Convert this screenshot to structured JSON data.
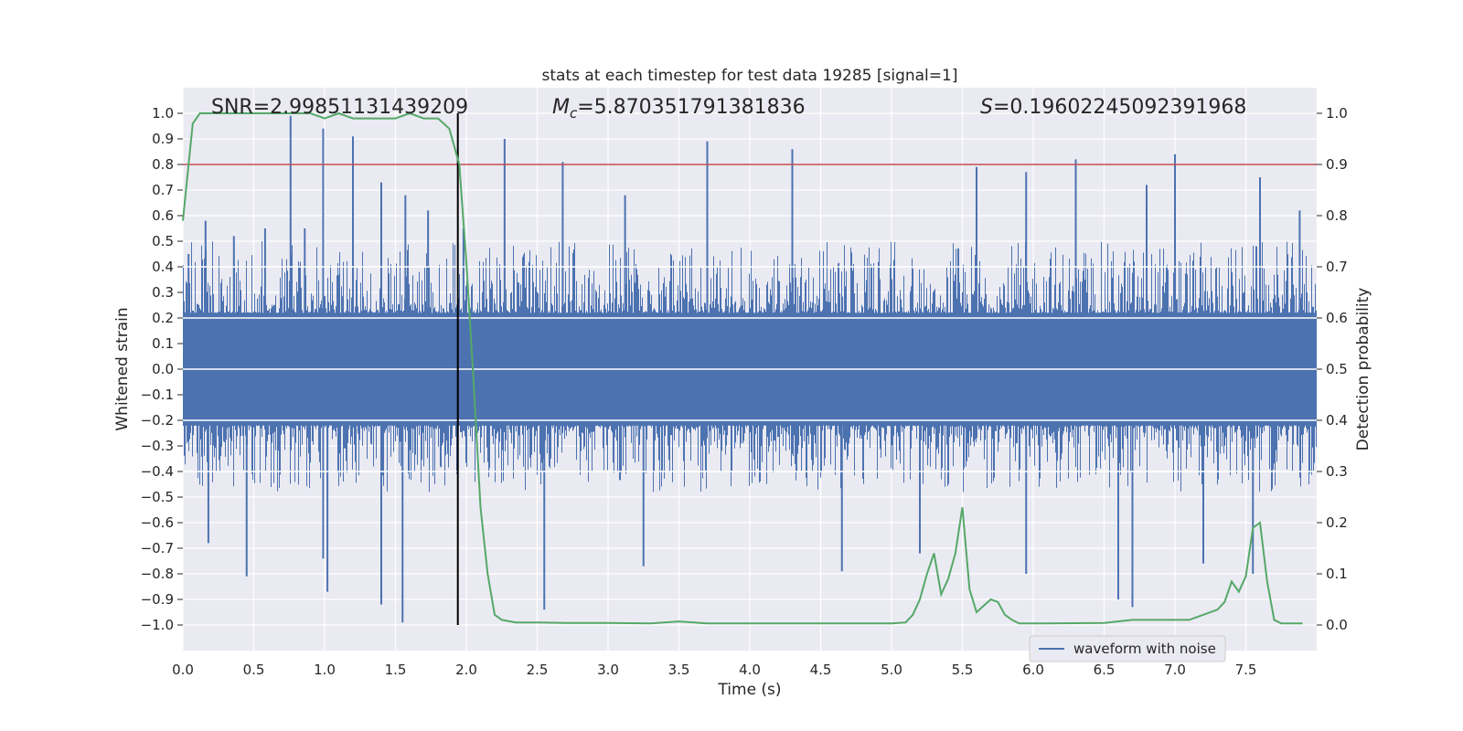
{
  "chart_data": {
    "type": "line",
    "title": "stats at each timestep for test data 19285 [signal=1]",
    "xlabel": "Time (s)",
    "ylabel": "Whitened strain",
    "y2label": "Detection probability",
    "xlim": [
      0.0,
      8.0
    ],
    "ylim": [
      -1.1,
      1.1
    ],
    "y2lim": [
      -0.05,
      1.05
    ],
    "xticks": [
      "0.0",
      "0.5",
      "1.0",
      "1.5",
      "2.0",
      "2.5",
      "3.0",
      "3.5",
      "4.0",
      "4.5",
      "5.0",
      "5.5",
      "6.0",
      "6.5",
      "7.0",
      "7.5"
    ],
    "yticks": [
      "1.0",
      "0.9",
      "0.8",
      "0.7",
      "0.6",
      "0.5",
      "0.4",
      "0.3",
      "0.2",
      "0.1",
      "0.0",
      "−0.1",
      "−0.2",
      "−0.3",
      "−0.4",
      "−0.5",
      "−0.6",
      "−0.7",
      "−0.8",
      "−0.9",
      "−1.0"
    ],
    "y2ticks": [
      "1.0",
      "0.9",
      "0.8",
      "0.7",
      "0.6",
      "0.5",
      "0.4",
      "0.3",
      "0.2",
      "0.1",
      "0.0"
    ],
    "grid": true,
    "legend_position": "bottom-right",
    "annotations": {
      "snr": "SNR=2.99851131439209",
      "mc_symbol": "M",
      "mc_sub": "c",
      "mc_value": "=5.870351791381836",
      "s_symbol": "S",
      "s_value": "=0.19602245092391968"
    },
    "series": [
      {
        "name": "waveform with noise",
        "axis": "left",
        "color": "#4c72b0",
        "peak_spikes_positive": [
          [
            0.04,
            0.45
          ],
          [
            0.16,
            0.58
          ],
          [
            0.36,
            0.52
          ],
          [
            0.58,
            0.55
          ],
          [
            0.76,
            0.99
          ],
          [
            0.86,
            0.55
          ],
          [
            0.99,
            0.94
          ],
          [
            1.2,
            0.91
          ],
          [
            1.4,
            0.73
          ],
          [
            1.57,
            0.68
          ],
          [
            1.73,
            0.62
          ],
          [
            1.98,
            0.55
          ],
          [
            2.27,
            0.9
          ],
          [
            2.68,
            0.81
          ],
          [
            3.12,
            0.68
          ],
          [
            3.7,
            0.89
          ],
          [
            4.3,
            0.86
          ],
          [
            5.6,
            0.79
          ],
          [
            5.95,
            0.77
          ],
          [
            6.3,
            0.82
          ],
          [
            6.8,
            0.72
          ],
          [
            7.0,
            0.84
          ],
          [
            7.6,
            0.75
          ],
          [
            7.88,
            0.62
          ]
        ],
        "peak_spikes_negative": [
          [
            0.18,
            -0.68
          ],
          [
            0.45,
            -0.81
          ],
          [
            0.99,
            -0.74
          ],
          [
            1.02,
            -0.87
          ],
          [
            1.4,
            -0.92
          ],
          [
            1.55,
            -0.99
          ],
          [
            2.55,
            -0.94
          ],
          [
            3.25,
            -0.77
          ],
          [
            4.65,
            -0.79
          ],
          [
            5.2,
            -0.72
          ],
          [
            5.95,
            -0.8
          ],
          [
            6.6,
            -0.9
          ],
          [
            6.7,
            -0.93
          ],
          [
            7.2,
            -0.76
          ],
          [
            7.55,
            -0.8
          ]
        ]
      },
      {
        "name": "",
        "axis": "right",
        "color": "#55a868",
        "x": [
          0.0,
          0.07,
          0.12,
          0.3,
          0.6,
          0.9,
          1.0,
          1.1,
          1.2,
          1.3,
          1.4,
          1.5,
          1.6,
          1.7,
          1.8,
          1.88,
          1.95,
          2.0,
          2.05,
          2.1,
          2.15,
          2.2,
          2.25,
          2.35,
          2.5,
          2.7,
          3.0,
          3.3,
          3.5,
          3.7,
          4.0,
          4.5,
          5.0,
          5.1,
          5.15,
          5.2,
          5.25,
          5.3,
          5.35,
          5.4,
          5.45,
          5.5,
          5.55,
          5.6,
          5.7,
          5.75,
          5.8,
          5.85,
          5.9,
          6.0,
          6.5,
          6.7,
          6.9,
          7.0,
          7.1,
          7.2,
          7.3,
          7.35,
          7.4,
          7.45,
          7.5,
          7.55,
          7.6,
          7.65,
          7.7,
          7.75,
          7.8,
          7.9
        ],
        "y": [
          0.79,
          0.98,
          1.0,
          1.0,
          1.0,
          1.0,
          0.99,
          1.0,
          0.99,
          0.99,
          0.99,
          0.99,
          1.0,
          0.99,
          0.99,
          0.97,
          0.9,
          0.71,
          0.48,
          0.23,
          0.1,
          0.02,
          0.01,
          0.005,
          0.005,
          0.004,
          0.004,
          0.003,
          0.007,
          0.003,
          0.003,
          0.003,
          0.003,
          0.005,
          0.02,
          0.05,
          0.1,
          0.14,
          0.06,
          0.09,
          0.14,
          0.23,
          0.07,
          0.025,
          0.05,
          0.045,
          0.02,
          0.01,
          0.003,
          0.003,
          0.004,
          0.01,
          0.01,
          0.01,
          0.01,
          0.02,
          0.03,
          0.045,
          0.085,
          0.065,
          0.095,
          0.19,
          0.2,
          0.085,
          0.01,
          0.003,
          0.003,
          0.003
        ]
      },
      {
        "name": "",
        "axis": "right",
        "color": "#c44e52",
        "kind": "threshold",
        "y": 0.9
      },
      {
        "name": "",
        "axis": "left",
        "color": "#000000",
        "kind": "vertical-marker",
        "x": 1.94,
        "y_range": [
          -1.0,
          1.0
        ]
      }
    ]
  }
}
